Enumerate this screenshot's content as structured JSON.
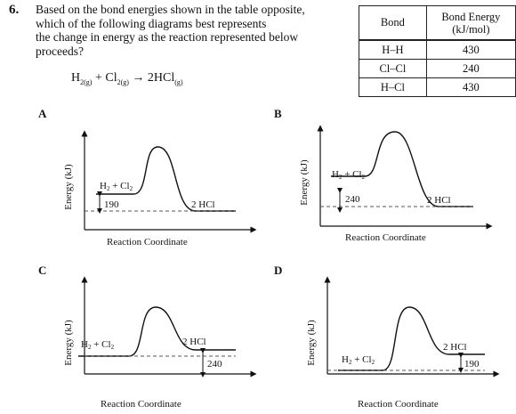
{
  "question": {
    "number": "6.",
    "lines": [
      "Based on the bond energies shown in the table opposite,",
      "which of the following diagrams best represents",
      "the change in energy as the reaction represented below",
      "proceeds?"
    ],
    "equation": {
      "r1": "H",
      "r1_sub": "2",
      "r1_state": "(g)",
      "plus": "+",
      "r2": "Cl",
      "r2_sub": "2",
      "r2_state": "(g)",
      "arrow": "→",
      "product": "2HCl",
      "product_state": "(g)"
    }
  },
  "bond_table": {
    "headers": [
      "Bond",
      "Bond Energy",
      "(kJ/mol)"
    ],
    "rows": [
      {
        "bond": "H–H",
        "energy": "430"
      },
      {
        "bond": "Cl–Cl",
        "energy": "240"
      },
      {
        "bond": "H–Cl",
        "energy": "430"
      }
    ]
  },
  "diagrams": [
    {
      "label": "A",
      "y_axis": "Energy (kJ)",
      "x_axis": "Reaction Coordinate",
      "reactant": "H",
      "reactant2": "+ Cl",
      "sub": "2",
      "product": "2 HCl",
      "gap_value": "190",
      "type": "exothermic"
    },
    {
      "label": "B",
      "y_axis": "Energy (kJ)",
      "x_axis": "Reaction Coordinate",
      "reactant": "H",
      "reactant2": "+ Cl",
      "sub": "2",
      "product": "2 HCl",
      "gap_value": "240",
      "type": "exothermic"
    },
    {
      "label": "C",
      "y_axis": "Energy (kJ)",
      "x_axis": "Reaction Coordinate",
      "reactant": "H",
      "reactant2": "+ Cl",
      "sub": "2",
      "product": "2 HCl",
      "gap_value": "240",
      "type": "endothermic"
    },
    {
      "label": "D",
      "y_axis": "Energy (kJ)",
      "x_axis": "Reaction Coordinate",
      "reactant": "H",
      "reactant2": "+ Cl",
      "sub": "2",
      "product": "2 HCl",
      "gap_value": "190",
      "type": "endothermic"
    }
  ]
}
